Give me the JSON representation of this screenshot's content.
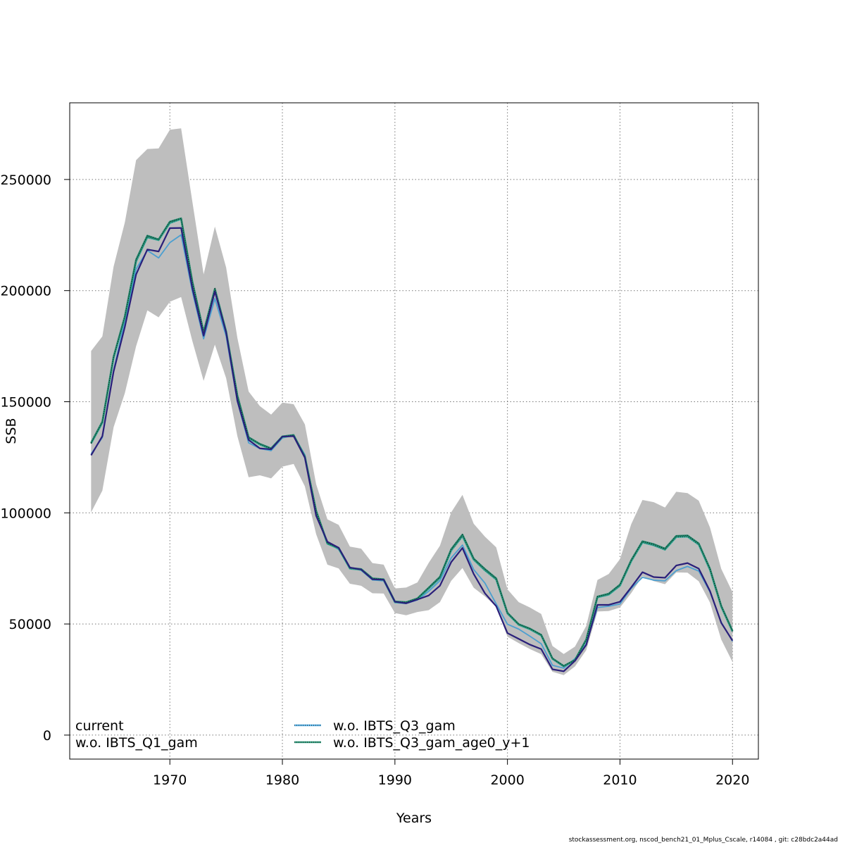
{
  "chart_data": {
    "type": "line",
    "title": "",
    "xlabel": "Years",
    "ylabel": "SSB",
    "xlim": [
      1961.1,
      2022.3
    ],
    "ylim": [
      -10800,
      284500
    ],
    "grid": true,
    "legend_position": "bottom-left",
    "x_ticks": [
      1970,
      1980,
      1990,
      2000,
      2010,
      2020
    ],
    "x_tick_labels": [
      "1970",
      "1980",
      "1990",
      "2000",
      "2010",
      "2020"
    ],
    "y_ticks": [
      0,
      50000,
      100000,
      150000,
      200000,
      250000
    ],
    "y_tick_labels": [
      "0",
      "50000",
      "100000",
      "150000",
      "200000",
      "250000"
    ],
    "x": [
      1963,
      1964,
      1965,
      1966,
      1967,
      1968,
      1969,
      1970,
      1971,
      1972,
      1973,
      1974,
      1975,
      1976,
      1977,
      1978,
      1979,
      1980,
      1981,
      1982,
      1983,
      1984,
      1985,
      1986,
      1987,
      1988,
      1989,
      1990,
      1991,
      1992,
      1993,
      1994,
      1995,
      1996,
      1997,
      1998,
      1999,
      2000,
      2001,
      2002,
      2003,
      2004,
      2005,
      2006,
      2007,
      2008,
      2009,
      2010,
      2011,
      2012,
      2013,
      2014,
      2015,
      2016,
      2017,
      2018,
      2019,
      2020
    ],
    "confidence_band": {
      "color": "#bebebe",
      "upper": [
        172800,
        179400,
        210800,
        230700,
        258700,
        263700,
        264000,
        272400,
        273000,
        240000,
        207300,
        228800,
        210400,
        178700,
        154600,
        148000,
        144200,
        149600,
        148900,
        139800,
        112900,
        97100,
        94600,
        84800,
        83900,
        77400,
        76700,
        66000,
        66400,
        68700,
        77500,
        85200,
        100200,
        108100,
        95100,
        89300,
        84500,
        65600,
        59800,
        57400,
        54500,
        40100,
        36500,
        39800,
        49100,
        69800,
        72500,
        79200,
        94900,
        105800,
        104800,
        102400,
        109500,
        108900,
        105500,
        93400,
        74800,
        64300
      ],
      "lower": [
        100200,
        110000,
        138500,
        153900,
        175000,
        191100,
        188000,
        195000,
        197100,
        177300,
        159400,
        175700,
        160600,
        134500,
        116000,
        116900,
        115500,
        120800,
        122000,
        111900,
        90400,
        76700,
        75000,
        68100,
        67200,
        63800,
        63700,
        54900,
        53900,
        55400,
        56200,
        59800,
        69400,
        75200,
        66300,
        62400,
        57800,
        44300,
        41400,
        38700,
        36400,
        28500,
        27000,
        30900,
        38200,
        55600,
        55800,
        57400,
        63900,
        71500,
        69300,
        67900,
        73200,
        73100,
        69200,
        59600,
        43000,
        32900
      ]
    },
    "series": [
      {
        "name": "current",
        "color": "#2a1f7a",
        "dash": "solid",
        "values": [
          125900,
          134500,
          163600,
          183700,
          207300,
          218500,
          217600,
          228100,
          228200,
          201000,
          179700,
          199600,
          181100,
          150400,
          132800,
          129000,
          128600,
          134300,
          134500,
          124800,
          98700,
          87000,
          84300,
          75400,
          74500,
          70100,
          69900,
          60000,
          59300,
          61000,
          62800,
          67200,
          77800,
          84200,
          72500,
          63800,
          58000,
          45900,
          43300,
          40700,
          38700,
          29600,
          28700,
          33400,
          40600,
          58600,
          58600,
          60000,
          66500,
          73300,
          71100,
          70800,
          76300,
          77400,
          74900,
          64800,
          50500,
          42500
        ]
      },
      {
        "name": "w.o. IBTS_Q1_gam",
        "color": "#4c9fd0",
        "dash": "solid",
        "values": [
          126500,
          133900,
          164200,
          186300,
          209700,
          218100,
          214700,
          221600,
          225100,
          199500,
          178300,
          196400,
          179500,
          150100,
          131500,
          128900,
          128000,
          133700,
          134900,
          126100,
          99300,
          86500,
          83500,
          75400,
          74100,
          69800,
          69400,
          59600,
          59200,
          60800,
          64700,
          69500,
          79700,
          85500,
          74500,
          68400,
          59000,
          49900,
          47700,
          44500,
          41100,
          31400,
          30100,
          34400,
          40900,
          57400,
          58000,
          59000,
          66000,
          71000,
          69700,
          69400,
          74000,
          75900,
          73800,
          64400,
          50800,
          42200
        ]
      },
      {
        "name": "w.o. IBTS_Q3_gam",
        "color": "#3ab0a0",
        "dash": "dotted",
        "values": [
          131200,
          140500,
          169700,
          187900,
          213100,
          224000,
          222700,
          230400,
          232200,
          203600,
          181000,
          200300,
          181300,
          152500,
          133600,
          130700,
          128700,
          134100,
          134800,
          125000,
          100600,
          86100,
          83900,
          74900,
          74400,
          70200,
          69800,
          59800,
          59500,
          61200,
          65900,
          70700,
          83000,
          89500,
          78900,
          74100,
          70000,
          54700,
          49600,
          47600,
          44800,
          34300,
          30900,
          33600,
          42700,
          62000,
          63200,
          67200,
          78200,
          86700,
          85400,
          83400,
          89100,
          89300,
          85700,
          74300,
          57700,
          46600
        ]
      },
      {
        "name": "w.o. IBTS_Q3_gam_age0_y+1",
        "color": "#1f8a6e",
        "dash": "dotted",
        "values": [
          131500,
          141000,
          170200,
          188400,
          213900,
          224700,
          223000,
          231000,
          232500,
          204000,
          181400,
          200800,
          181700,
          152800,
          134000,
          131000,
          129000,
          134400,
          135000,
          125300,
          100900,
          86400,
          84200,
          75200,
          74700,
          70500,
          70100,
          60100,
          59800,
          61500,
          66300,
          71200,
          83600,
          90200,
          79400,
          74700,
          70500,
          55000,
          49900,
          47900,
          45100,
          34500,
          31100,
          33800,
          43000,
          62300,
          63600,
          67700,
          78700,
          87200,
          85900,
          83900,
          89600,
          89800,
          86200,
          74800,
          58100,
          46900
        ]
      }
    ]
  },
  "legend": {
    "left": [
      {
        "label": "current"
      },
      {
        "label": "w.o. IBTS_Q1_gam"
      }
    ],
    "right": [
      {
        "label": "w.o. IBTS_Q3_gam",
        "color": "#5ab4e8",
        "inner": "#1a1a1a"
      },
      {
        "label": "w.o. IBTS_Q3_gam_age0_y+1",
        "color": "#2f9a7a",
        "inner": "#1a1a1a"
      }
    ]
  },
  "footer": "stockassessment.org, nscod_bench21_01_Mplus_Cscale, r14084 , git: c28bdc2a44ad"
}
